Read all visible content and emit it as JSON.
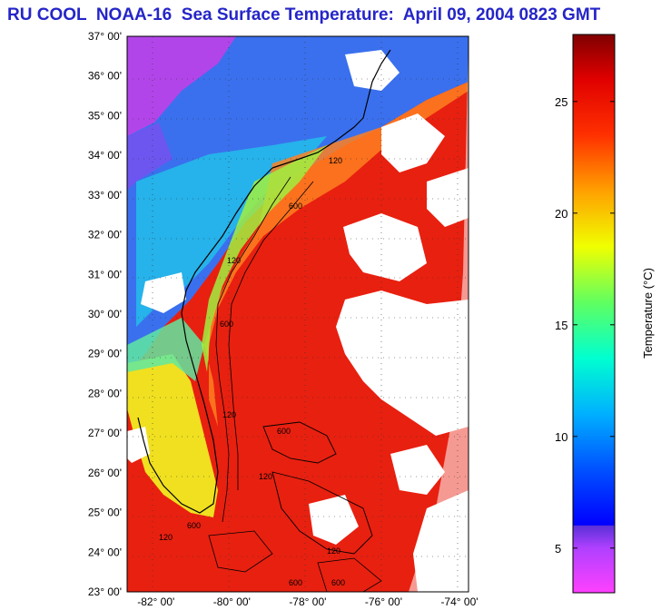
{
  "title": "RU COOL  NOAA-16  Sea Surface Temperature:  April 09, 2004 0823 GMT",
  "map": {
    "lat_labels": [
      "37° 00'",
      "36° 00'",
      "35° 00'",
      "34° 00'",
      "33° 00'",
      "32° 00'",
      "31° 00'",
      "30° 00'",
      "29° 00'",
      "28° 00'",
      "27° 00'",
      "26° 00'",
      "25° 00'",
      "24° 00'",
      "23° 00'"
    ],
    "lon_labels": [
      "-82° 00'",
      "-80° 00'",
      "-78° 00'",
      "-76° 00'",
      "-74° 00'"
    ],
    "lat_range": [
      23,
      37
    ],
    "lon_range": [
      -83,
      -74
    ],
    "isobath_labels": [
      "120",
      "600",
      "120",
      "600",
      "120",
      "600",
      "120",
      "600",
      "120",
      "600",
      "120",
      "600"
    ]
  },
  "colorbar": {
    "label": "Temperature (°C)",
    "tick_labels": [
      "25",
      "20",
      "15",
      "10",
      "5"
    ],
    "tick_values": [
      25,
      20,
      15,
      10,
      5
    ],
    "range": [
      3,
      28
    ]
  },
  "colors": {
    "title": "#2525c8",
    "land_magenta": "#d040e0",
    "cold_blue": "#2050e8",
    "warm_red": "#e82010",
    "clouds": "#ffffff"
  }
}
